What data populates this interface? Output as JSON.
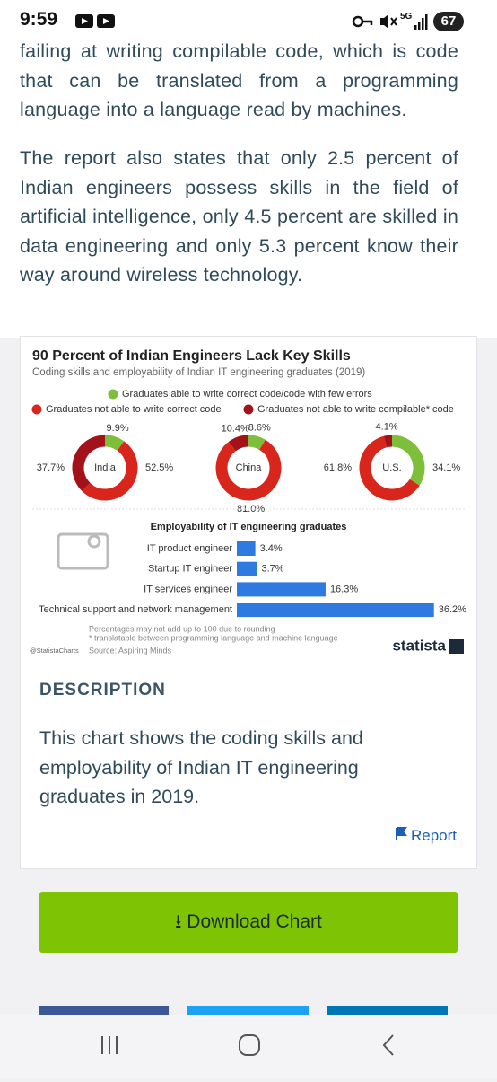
{
  "status_bar": {
    "time": "9:59",
    "network": "5G",
    "battery": "67"
  },
  "article": {
    "paragraphs": [
      "failing at writing compilable code, which is code that can be translated from a programming language into a language read by machines.",
      "The report also states that only 2.5 percent of Indian engineers possess skills in the field of artificial intelligence, only 4.5 percent are skilled in data engineering and only 5.3 percent know their way around wireless technology."
    ]
  },
  "infographic": {
    "title": "90 Percent of Indian Engineers Lack Key Skills",
    "subtitle": "Coding skills and employability of Indian IT engineering graduates (2019)",
    "legend": [
      {
        "name": "Graduates able to write correct code/code with few errors",
        "color": "#7dbf3b"
      },
      {
        "name": "Graduates not able to write correct code",
        "color": "#d9261c"
      },
      {
        "name": "Graduates not able to write compilable* code",
        "color": "#a3121a"
      }
    ],
    "donuts": [
      {
        "label": "India",
        "values": [
          9.9,
          52.5,
          37.7
        ],
        "value_labels": [
          "9.9%",
          "52.5%",
          "37.7%"
        ]
      },
      {
        "label": "China",
        "values": [
          8.6,
          81.0,
          10.4
        ],
        "value_labels": [
          "8.6%",
          "81.0%",
          "10.4%"
        ]
      },
      {
        "label": "U.S.",
        "values": [
          34.1,
          61.8,
          4.1
        ],
        "value_labels": [
          "34.1%",
          "61.8%",
          "4.1%"
        ]
      }
    ],
    "bar_title": "Employability of IT engineering graduates",
    "bar_color": "#2f7ae0",
    "categories": [
      "IT product engineer",
      "Startup IT engineer",
      "IT services engineer",
      "Technical support and network management"
    ],
    "values": [
      3.4,
      3.7,
      16.3,
      36.2
    ],
    "value_labels": [
      "3.4%",
      "3.7%",
      "16.3%",
      "36.2%"
    ],
    "notes": [
      "Percentages may not add up to 100 due to rounding",
      "* translatable between programming language and machine language"
    ],
    "source": "Source: Aspiring Minds",
    "handle": "@StatistaCharts",
    "brand": "statista"
  },
  "description": {
    "heading": "DESCRIPTION",
    "text": "This chart shows the coding skills and employability of Indian IT engineering graduates in 2019.",
    "report": "Report",
    "download": "Download Chart"
  }
}
